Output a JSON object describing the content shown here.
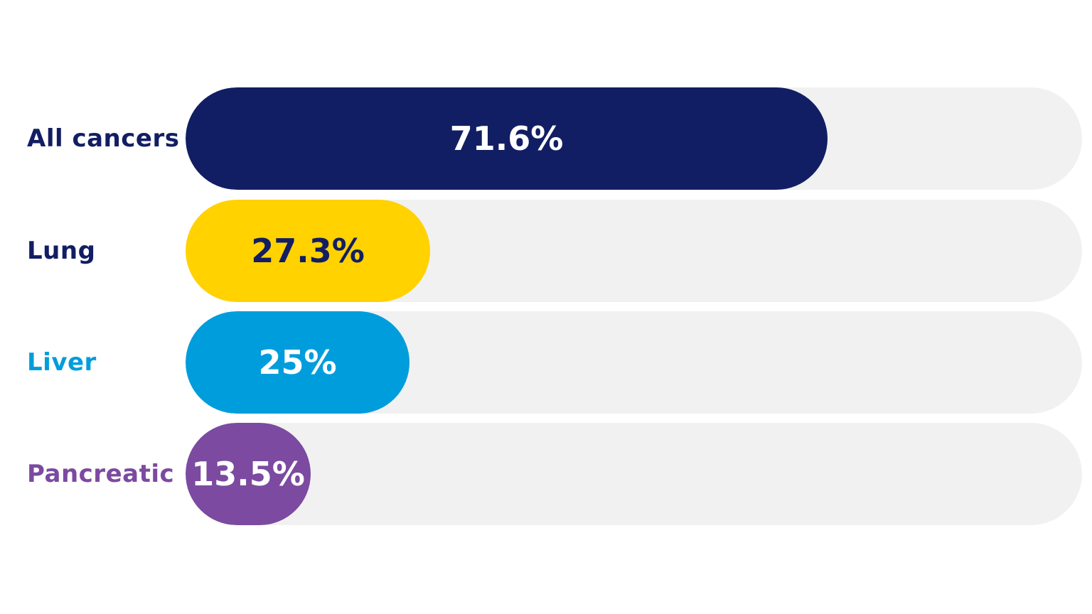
{
  "chart_data": {
    "type": "bar",
    "orientation": "horizontal",
    "categories": [
      "All cancers",
      "Lung",
      "Liver",
      "Pancreatic"
    ],
    "values": [
      71.6,
      27.3,
      25,
      13.5
    ],
    "value_labels": [
      "71.6%",
      "27.3%",
      "25%",
      "13.5%"
    ],
    "xlim": [
      0,
      100
    ],
    "grid": false,
    "bar_colors": [
      "#121e63",
      "#ffd200",
      "#009ddc",
      "#7c4aa0"
    ],
    "label_colors": [
      "#121e63",
      "#121e63",
      "#009ddc",
      "#7c4aa0"
    ],
    "value_text_colors": [
      "#ffffff",
      "#121e63",
      "#ffffff",
      "#ffffff"
    ],
    "track_color": "#f1f1f1"
  }
}
